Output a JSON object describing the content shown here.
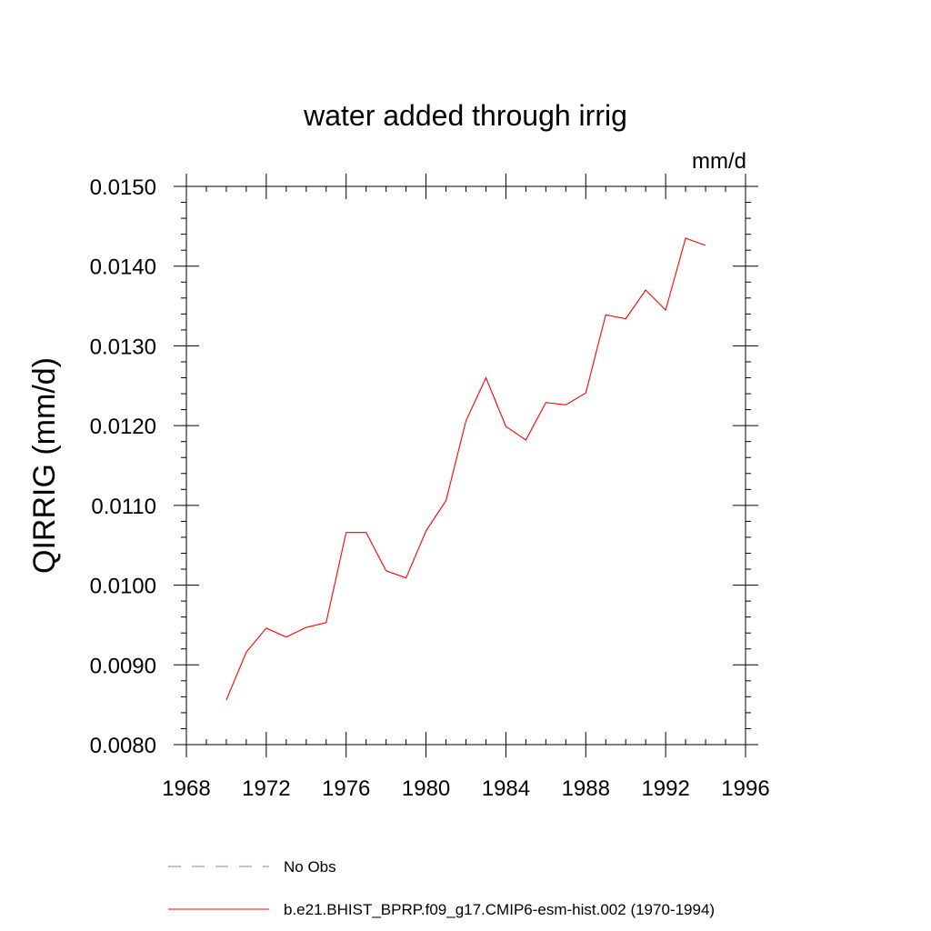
{
  "chart_data": {
    "type": "line",
    "title": "water added through irrig",
    "units": "mm/d",
    "xlabel": "",
    "ylabel": "QIRRIG  (mm/d)",
    "xlim": [
      1968,
      1996
    ],
    "ylim": [
      0.008,
      0.015
    ],
    "x_ticks": [
      "1968",
      "1972",
      "1976",
      "1980",
      "1984",
      "1988",
      "1992",
      "1996"
    ],
    "y_ticks": [
      "0.0080",
      "0.0090",
      "0.0100",
      "0.0110",
      "0.0120",
      "0.0130",
      "0.0140",
      "0.0150"
    ],
    "series": [
      {
        "name": "b.e21.BHIST_BPRP.f09_g17.CMIP6-esm-hist.002 (1970-1994)",
        "color": "#ff0000",
        "style": "solid",
        "x": [
          1970,
          1971,
          1972,
          1973,
          1974,
          1975,
          1976,
          1977,
          1978,
          1979,
          1980,
          1981,
          1982,
          1983,
          1984,
          1985,
          1986,
          1987,
          1988,
          1989,
          1990,
          1991,
          1992,
          1993,
          1994
        ],
        "values": [
          0.00856,
          0.00916,
          0.00946,
          0.00935,
          0.00947,
          0.00953,
          0.01066,
          0.01066,
          0.01018,
          0.01009,
          0.01068,
          0.01106,
          0.01206,
          0.0126,
          0.01199,
          0.01182,
          0.01229,
          0.01226,
          0.01241,
          0.01339,
          0.01334,
          0.0137,
          0.01345,
          0.01435,
          0.01426
        ]
      }
    ],
    "legend": [
      {
        "label": "No Obs",
        "color": "#7f7fbf",
        "style": "dashed"
      },
      {
        "label": "b.e21.BHIST_BPRP.f09_g17.CMIP6-esm-hist.002 (1970-1994)",
        "color": "#ff0000",
        "style": "solid"
      }
    ],
    "legend_placement": "bottom"
  }
}
